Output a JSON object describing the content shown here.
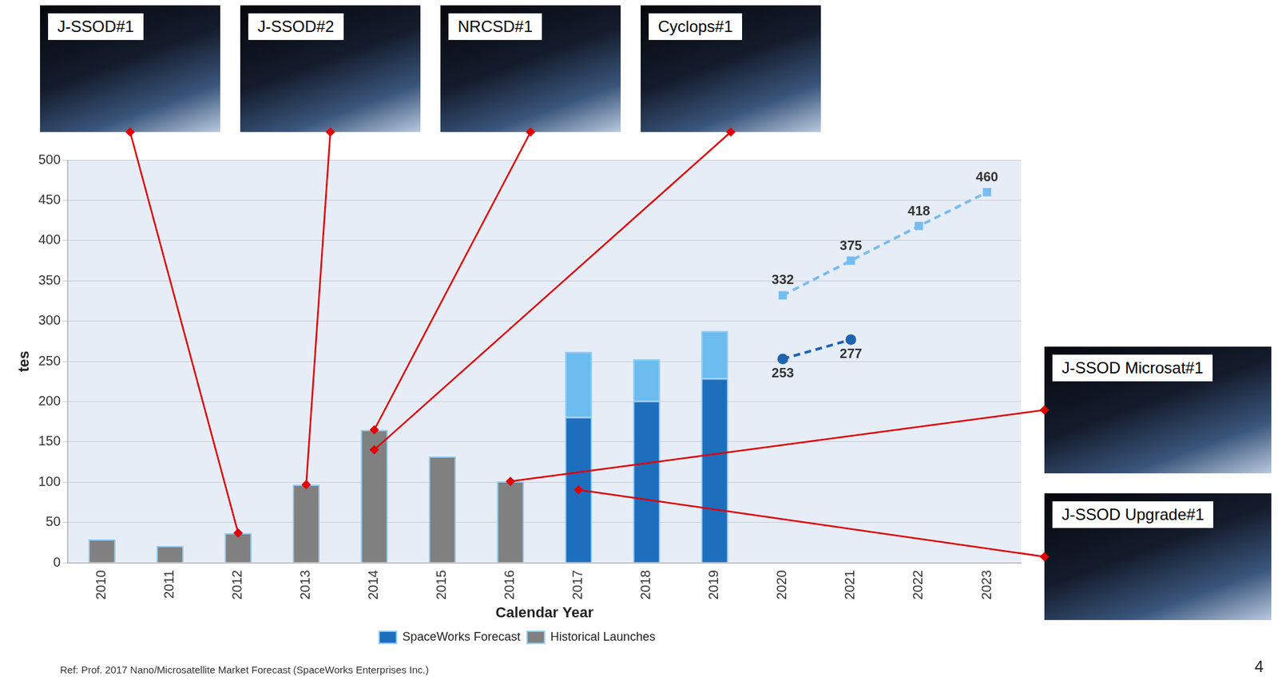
{
  "chart_data": {
    "type": "bar",
    "xlabel": "Calendar Year",
    "ylabel": "tes",
    "categories": [
      "2010",
      "2011",
      "2012",
      "2013",
      "2014",
      "2015",
      "2016",
      "2017",
      "2018",
      "2019",
      "2020",
      "2021",
      "2022",
      "2023"
    ],
    "series": [
      {
        "name": "Historical Launches",
        "type": "bar",
        "color": "#808080",
        "values": [
          29,
          21,
          37,
          97,
          165,
          132,
          101,
          null,
          null,
          null,
          null,
          null,
          null,
          null
        ]
      },
      {
        "name": "SpaceWorks Forecast",
        "type": "bar",
        "color": "#1e6ebe",
        "values": [
          null,
          null,
          null,
          null,
          null,
          null,
          null,
          181,
          201,
          229,
          null,
          null,
          null,
          null
        ]
      },
      {
        "type": "bar",
        "color": "#6cbcf0",
        "values": [
          null,
          null,
          null,
          null,
          null,
          null,
          null,
          81,
          52,
          59,
          null,
          null,
          null,
          null
        ]
      },
      {
        "type": "line",
        "color": "#76bdf2",
        "marker": "square",
        "line_style": "dashed",
        "data_labels": true,
        "values": [
          null,
          null,
          null,
          null,
          null,
          null,
          null,
          null,
          null,
          null,
          332,
          375,
          418,
          460
        ]
      },
      {
        "name": "SpaceWorks Forecast",
        "type": "line",
        "color": "#1e64b0",
        "marker": "circle",
        "line_style": "dashed",
        "data_labels": true,
        "values": [
          null,
          null,
          null,
          null,
          null,
          null,
          null,
          null,
          null,
          null,
          253,
          277,
          null,
          null
        ]
      }
    ],
    "stacked": true,
    "ylim": [
      0,
      500
    ],
    "yticks": [
      0,
      50,
      100,
      150,
      200,
      250,
      300,
      350,
      400,
      450,
      500
    ],
    "grid": true,
    "legend": "bottom",
    "annotations": [
      {
        "text": "J-SSOD#1",
        "category": "2012"
      },
      {
        "text": "J-SSOD#2",
        "category": "2013"
      },
      {
        "text": "NRCSD#1",
        "category": "2014"
      },
      {
        "text": "Cyclops#1",
        "category": "2014"
      },
      {
        "text": "J-SSOD Microsat#1",
        "category": "2016"
      },
      {
        "text": "J-SSOD Upgrade#1",
        "category": "2017"
      }
    ]
  },
  "page": {
    "source": "Ref: Prof. 2017 Nano/Microsatellite Market Forecast (SpaceWorks Enterprises Inc.)",
    "page_number": "4"
  }
}
